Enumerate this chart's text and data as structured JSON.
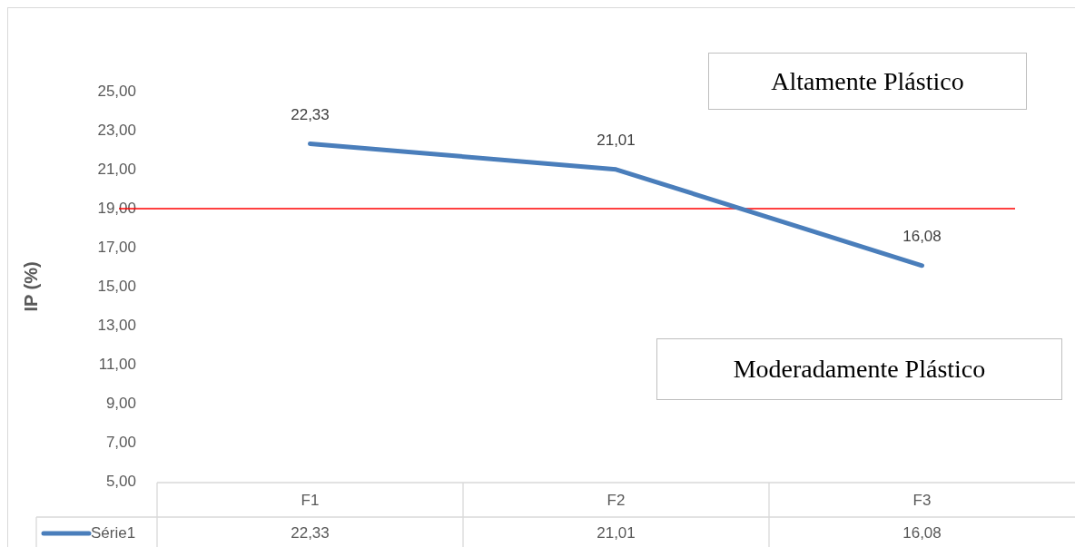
{
  "chart_data": {
    "type": "line",
    "ylabel": "IP (%)",
    "categories": [
      "F1",
      "F2",
      "F3"
    ],
    "series": [
      {
        "name": "Série1",
        "color": "#4a7ebb",
        "values": [
          22.33,
          21.01,
          16.08
        ],
        "value_labels": [
          "22,33",
          "21,01",
          "16,08"
        ]
      }
    ],
    "ylim": [
      5,
      25
    ],
    "yticks": [
      {
        "value": 5,
        "label": "5,00"
      },
      {
        "value": 7,
        "label": "7,00"
      },
      {
        "value": 9,
        "label": "9,00"
      },
      {
        "value": 11,
        "label": "11,00"
      },
      {
        "value": 13,
        "label": "13,00"
      },
      {
        "value": 15,
        "label": "15,00"
      },
      {
        "value": 17,
        "label": "17,00"
      },
      {
        "value": 19,
        "label": "19,00"
      },
      {
        "value": 21,
        "label": "21,00"
      },
      {
        "value": 23,
        "label": "23,00"
      },
      {
        "value": 25,
        "label": "25,00"
      }
    ],
    "grid": false,
    "legend": "bottom",
    "marker": "none",
    "line_style": "solid",
    "ref_lines": [
      {
        "axis": "y",
        "value": 19,
        "color": "#ff0000"
      }
    ],
    "annotations": [
      "Altamente Plástico",
      "Moderadamente Plástico"
    ]
  }
}
